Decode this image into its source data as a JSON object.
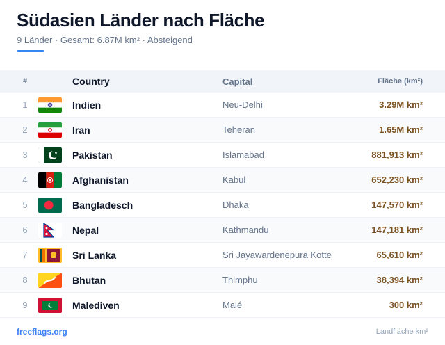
{
  "header": {
    "title": "Südasien Länder nach Fläche",
    "subtitle": "9 Länder · Gesamt: 6.87M km² · Absteigend"
  },
  "table": {
    "columns": {
      "num": "#",
      "country": "Country",
      "capital": "Capital",
      "area": "Fläche (km²)"
    },
    "rows": [
      {
        "num": "1",
        "country": "Indien",
        "capital": "Neu-Delhi",
        "area": "3.29M km²",
        "flag": "flag-india-icon"
      },
      {
        "num": "2",
        "country": "Iran",
        "capital": "Teheran",
        "area": "1.65M km²",
        "flag": "flag-iran-icon"
      },
      {
        "num": "3",
        "country": "Pakistan",
        "capital": "Islamabad",
        "area": "881,913 km²",
        "flag": "flag-pakistan-icon"
      },
      {
        "num": "4",
        "country": "Afghanistan",
        "capital": "Kabul",
        "area": "652,230 km²",
        "flag": "flag-afghanistan-icon"
      },
      {
        "num": "5",
        "country": "Bangladesch",
        "capital": "Dhaka",
        "area": "147,570 km²",
        "flag": "flag-bangladesh-icon"
      },
      {
        "num": "6",
        "country": "Nepal",
        "capital": "Kathmandu",
        "area": "147,181 km²",
        "flag": "flag-nepal-icon"
      },
      {
        "num": "7",
        "country": "Sri Lanka",
        "capital": "Sri Jayawardenepura Kotte",
        "area": "65,610 km²",
        "flag": "flag-sri-lanka-icon"
      },
      {
        "num": "8",
        "country": "Bhutan",
        "capital": "Thimphu",
        "area": "38,394 km²",
        "flag": "flag-bhutan-icon"
      },
      {
        "num": "9",
        "country": "Malediven",
        "capital": "Malé",
        "area": "300 km²",
        "flag": "flag-maldives-icon"
      }
    ]
  },
  "footer": {
    "source": "freeflags.org",
    "unit_note": "Landfläche km²"
  },
  "colors": {
    "accent": "#3b82f6",
    "area_value": "#7c5320",
    "header_bg": "#f1f5f9"
  }
}
